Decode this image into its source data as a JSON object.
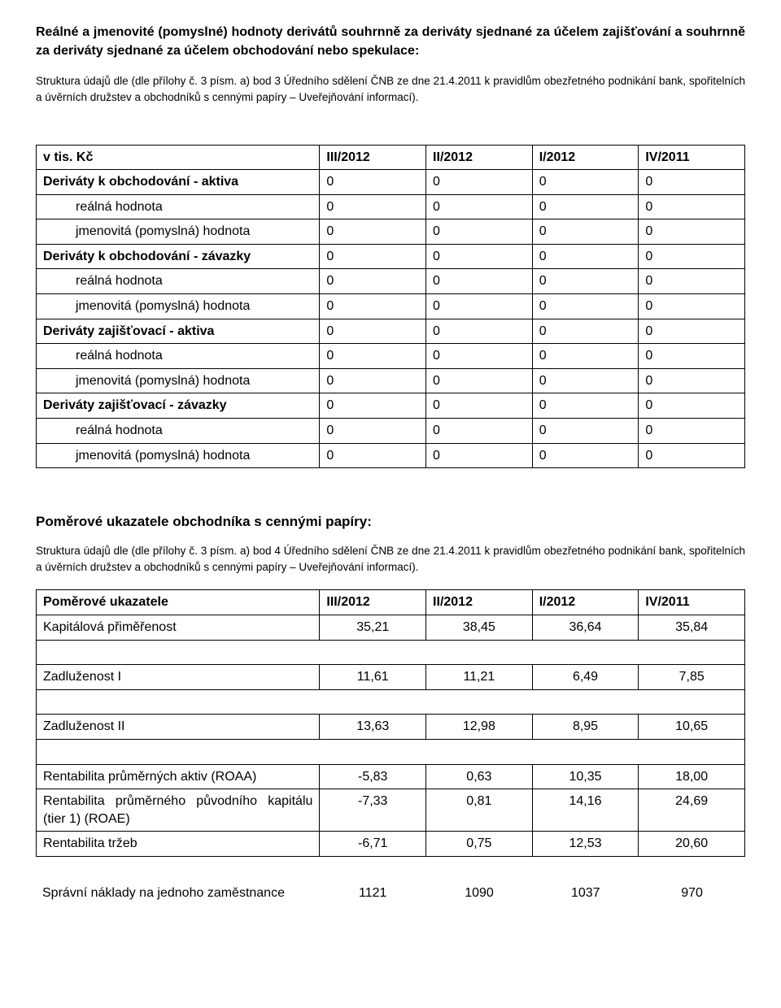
{
  "colors": {
    "text": "#000000",
    "background": "#ffffff",
    "border": "#000000"
  },
  "typography": {
    "font_family": "Arial",
    "body_size_pt": 12,
    "note_size_pt": 10,
    "heading_size_pt": 13
  },
  "section1": {
    "title": "Reálné a jmenovité (pomyslné) hodnoty derivátů souhrnně za deriváty sjednané za účelem zajišťování a souhrnně za deriváty sjednané za účelem obchodování nebo spekulace:",
    "note": "Struktura údajů dle (dle přílohy č. 3 písm. a) bod 3 Úředního sdělení ČNB ze dne 21.4.2011 k pravidlům obezřetného podnikání bank, spořitelních a úvěrních družstev a obchodníků s cennými papíry – Uveřejňování informací)."
  },
  "table1": {
    "columns": [
      "v tis. Kč",
      "III/2012",
      "II/2012",
      "I/2012",
      "IV/2011"
    ],
    "col_widths_pct": [
      40,
      15,
      15,
      15,
      15
    ],
    "rows": [
      {
        "label": "Deriváty k obchodování - aktiva",
        "bold": true,
        "indent": 0,
        "v": [
          "0",
          "0",
          "0",
          "0"
        ]
      },
      {
        "label": "reálná hodnota",
        "bold": false,
        "indent": 1,
        "v": [
          "0",
          "0",
          "0",
          "0"
        ]
      },
      {
        "label": "jmenovitá (pomyslná) hodnota",
        "bold": false,
        "indent": 1,
        "v": [
          "0",
          "0",
          "0",
          "0"
        ],
        "justify": true
      },
      {
        "label": "Deriváty k obchodování - závazky",
        "bold": true,
        "indent": 0,
        "v": [
          "0",
          "0",
          "0",
          "0"
        ],
        "justify": true
      },
      {
        "label": "reálná hodnota",
        "bold": false,
        "indent": 1,
        "v": [
          "0",
          "0",
          "0",
          "0"
        ]
      },
      {
        "label": "jmenovitá (pomyslná) hodnota",
        "bold": false,
        "indent": 1,
        "v": [
          "0",
          "0",
          "0",
          "0"
        ],
        "justify": true
      },
      {
        "label": "Deriváty zajišťovací - aktiva",
        "bold": true,
        "indent": 0,
        "v": [
          "0",
          "0",
          "0",
          "0"
        ]
      },
      {
        "label": "reálná hodnota",
        "bold": false,
        "indent": 1,
        "v": [
          "0",
          "0",
          "0",
          "0"
        ]
      },
      {
        "label": "jmenovitá (pomyslná) hodnota",
        "bold": false,
        "indent": 1,
        "v": [
          "0",
          "0",
          "0",
          "0"
        ],
        "justify": true
      },
      {
        "label": "Deriváty zajišťovací - závazky",
        "bold": true,
        "indent": 0,
        "v": [
          "0",
          "0",
          "0",
          "0"
        ]
      },
      {
        "label": "reálná hodnota",
        "bold": false,
        "indent": 1,
        "v": [
          "0",
          "0",
          "0",
          "0"
        ]
      },
      {
        "label": "jmenovitá (pomyslná) hodnota",
        "bold": false,
        "indent": 1,
        "v": [
          "0",
          "0",
          "0",
          "0"
        ],
        "justify": true
      }
    ]
  },
  "section2": {
    "heading": "Poměrové ukazatele obchodníka s cennými papíry:",
    "note": "Struktura údajů dle (dle přílohy č. 3 písm. a) bod 4 Úředního sdělení ČNB ze dne 21.4.2011 k pravidlům obezřetného podnikání bank, spořitelních a úvěrních družstev a obchodníků s cennými papíry – Uveřejňování informací)."
  },
  "table2": {
    "columns": [
      "Poměrové ukazatele",
      "III/2012",
      "II/2012",
      "I/2012",
      "IV/2011"
    ],
    "col_widths_pct": [
      40,
      15,
      15,
      15,
      15
    ],
    "rows": [
      {
        "label": "Kapitálová přiměřenost",
        "v": [
          "35,21",
          "38,45",
          "36,64",
          "35,84"
        ]
      },
      {
        "label": "Zadluženost I",
        "v": [
          "11,61",
          "11,21",
          "6,49",
          "7,85"
        ],
        "spaced": true
      },
      {
        "label": "Zadluženost II",
        "v": [
          "13,63",
          "12,98",
          "8,95",
          "10,65"
        ],
        "spaced": true
      },
      {
        "label": "Rentabilita průměrných aktiv (ROAA)",
        "v": [
          "-5,83",
          "0,63",
          "10,35",
          "18,00"
        ],
        "justify": true,
        "spaced": true
      },
      {
        "label": "Rentabilita průměrného původního kapitálu (tier 1) (ROAE)",
        "v": [
          "-7,33",
          "0,81",
          "14,16",
          "24,69"
        ],
        "justify": true
      },
      {
        "label": "Rentabilita tržeb",
        "v": [
          "-6,71",
          "0,75",
          "12,53",
          "20,60"
        ]
      }
    ]
  },
  "table3": {
    "rows": [
      {
        "label": "Správní náklady na jednoho zaměstnance",
        "v": [
          "1121",
          "1090",
          "1037",
          "970"
        ],
        "justify": true
      }
    ]
  }
}
